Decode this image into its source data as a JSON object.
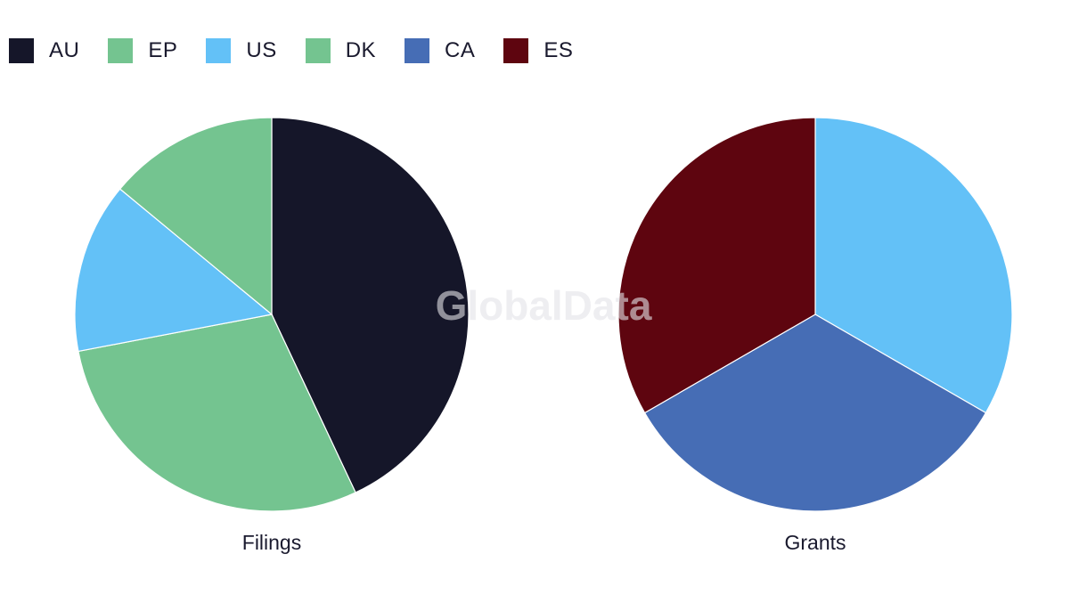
{
  "legend": [
    {
      "label": "AU",
      "color": "#151629"
    },
    {
      "label": "EP",
      "color": "#74c490"
    },
    {
      "label": "US",
      "color": "#63c1f7"
    },
    {
      "label": "DK",
      "color": "#74c490"
    },
    {
      "label": "CA",
      "color": "#466db5"
    },
    {
      "label": "ES",
      "color": "#5e050f"
    }
  ],
  "watermark": "GlobalData",
  "chart_data": [
    {
      "type": "pie",
      "title": "Filings",
      "slices": [
        {
          "label": "AU",
          "value": 43,
          "color": "#151629"
        },
        {
          "label": "EP",
          "value": 29,
          "color": "#74c490"
        },
        {
          "label": "US",
          "value": 14,
          "color": "#63c1f7"
        },
        {
          "label": "DK",
          "value": 14,
          "color": "#74c490"
        }
      ]
    },
    {
      "type": "pie",
      "title": "Grants",
      "slices": [
        {
          "label": "US",
          "value": 1,
          "color": "#63c1f7"
        },
        {
          "label": "CA",
          "value": 1,
          "color": "#466db5"
        },
        {
          "label": "ES",
          "value": 1,
          "color": "#5e050f"
        }
      ]
    }
  ]
}
